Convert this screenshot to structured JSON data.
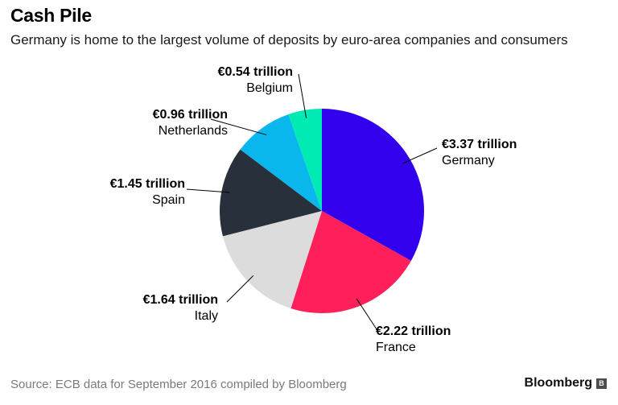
{
  "header": {
    "title": "Cash Pile",
    "subtitle": "Germany is home to the largest volume of deposits by euro-area companies and consumers"
  },
  "chart_data": {
    "type": "pie",
    "title": "Cash Pile",
    "subtitle": "Germany is home to the largest volume of deposits by euro-area companies and consumers",
    "unit": "€ trillion",
    "slices": [
      {
        "name": "Germany",
        "value": 3.37,
        "label": "€3.37 trillion",
        "color": "#3300ee"
      },
      {
        "name": "France",
        "value": 2.22,
        "label": "€2.22 trillion",
        "color": "#ff1f5a"
      },
      {
        "name": "Italy",
        "value": 1.64,
        "label": "€1.64 trillion",
        "color": "#dcdcdc"
      },
      {
        "name": "Spain",
        "value": 1.45,
        "label": "€1.45 trillion",
        "color": "#28313b"
      },
      {
        "name": "Netherlands",
        "value": 0.96,
        "label": "€0.96 trillion",
        "color": "#09b7ed"
      },
      {
        "name": "Belgium",
        "value": 0.54,
        "label": "€0.54 trillion",
        "color": "#00eab3"
      }
    ]
  },
  "footer": {
    "source": "Source: ECB data for September 2016 compiled by Bloomberg",
    "brand": "Bloomberg",
    "brand_icon": "bloomberg-logo-icon"
  }
}
